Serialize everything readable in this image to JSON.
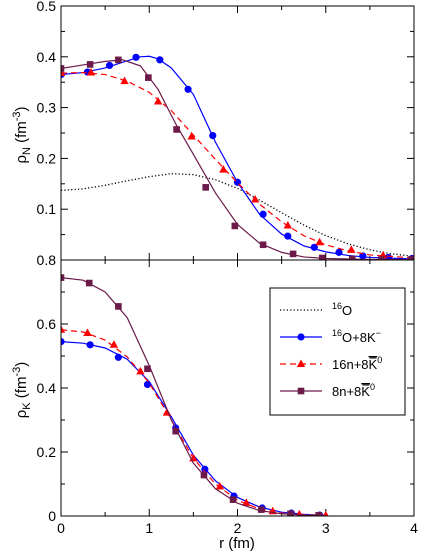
{
  "chart_data": [
    {
      "type": "line",
      "panel": "top",
      "xlabel": "",
      "ylabel": "ρN (fm-3)",
      "ylabel_parts": {
        "main": "ρ",
        "sub": "N",
        "rest": " (fm",
        "sup": "-3",
        "end": ")"
      },
      "xlim": [
        0,
        4
      ],
      "ylim": [
        0.0,
        0.5
      ],
      "xticks": [
        0,
        1,
        2,
        3,
        4
      ],
      "yticks": [
        {
          "value": 0.1,
          "label": "0.1"
        },
        {
          "value": 0.2,
          "label": "0.2"
        },
        {
          "value": 0.3,
          "label": "0.3"
        },
        {
          "value": 0.4,
          "label": "0.4"
        },
        {
          "value": 0.5,
          "label": "0.5"
        }
      ],
      "bottom_label": "0.8",
      "series": [
        {
          "key": "o16",
          "color": "#000000",
          "style": "dotted",
          "marker": "none",
          "curve": [
            [
              0,
              0.137
            ],
            [
              0.25,
              0.14
            ],
            [
              0.5,
              0.147
            ],
            [
              0.75,
              0.156
            ],
            [
              1.0,
              0.164
            ],
            [
              1.25,
              0.17
            ],
            [
              1.5,
              0.168
            ],
            [
              1.75,
              0.158
            ],
            [
              2.0,
              0.141
            ],
            [
              2.25,
              0.118
            ],
            [
              2.5,
              0.093
            ],
            [
              2.75,
              0.069
            ],
            [
              3.0,
              0.048
            ],
            [
              3.25,
              0.032
            ],
            [
              3.5,
              0.02
            ],
            [
              3.75,
              0.012
            ],
            [
              4.0,
              0.007
            ]
          ],
          "points": []
        },
        {
          "key": "o16k",
          "color": "#0000ff",
          "style": "solid",
          "marker": "circle",
          "curve": [
            [
              0,
              0.365
            ],
            [
              0.25,
              0.369
            ],
            [
              0.5,
              0.378
            ],
            [
              0.75,
              0.392
            ],
            [
              0.9,
              0.4
            ],
            [
              1.0,
              0.401
            ],
            [
              1.1,
              0.396
            ],
            [
              1.25,
              0.378
            ],
            [
              1.5,
              0.326
            ],
            [
              1.75,
              0.232
            ],
            [
              2.0,
              0.153
            ],
            [
              2.25,
              0.09
            ],
            [
              2.5,
              0.051
            ],
            [
              2.75,
              0.028
            ],
            [
              3.0,
              0.016
            ],
            [
              3.25,
              0.009
            ],
            [
              3.5,
              0.005
            ],
            [
              4.0,
              0.002
            ]
          ],
          "points": [
            [
              0,
              0.365
            ],
            [
              0.3,
              0.37
            ],
            [
              0.55,
              0.383
            ],
            [
              0.85,
              0.399
            ],
            [
              1.12,
              0.394
            ],
            [
              1.44,
              0.336
            ],
            [
              1.72,
              0.245
            ],
            [
              2.0,
              0.153
            ],
            [
              2.29,
              0.09
            ],
            [
              2.57,
              0.047
            ],
            [
              2.87,
              0.025
            ],
            [
              3.15,
              0.015
            ],
            [
              3.42,
              0.008
            ],
            [
              3.71,
              0.005
            ],
            [
              3.98,
              0.003
            ]
          ]
        },
        {
          "key": "n16k",
          "color": "#ff0000",
          "style": "dashed",
          "marker": "triangle",
          "curve": [
            [
              0,
              0.368
            ],
            [
              0.25,
              0.369
            ],
            [
              0.5,
              0.365
            ],
            [
              0.75,
              0.352
            ],
            [
              1.0,
              0.33
            ],
            [
              1.25,
              0.294
            ],
            [
              1.5,
              0.246
            ],
            [
              1.75,
              0.198
            ],
            [
              2.0,
              0.152
            ],
            [
              2.25,
              0.11
            ],
            [
              2.5,
              0.075
            ],
            [
              2.75,
              0.048
            ],
            [
              3.0,
              0.03
            ],
            [
              3.25,
              0.018
            ],
            [
              3.5,
              0.01
            ],
            [
              4.0,
              0.004
            ]
          ],
          "points": [
            [
              0,
              0.368
            ],
            [
              0.34,
              0.369
            ],
            [
              0.72,
              0.352
            ],
            [
              1.1,
              0.312
            ],
            [
              1.48,
              0.243
            ],
            [
              1.84,
              0.178
            ],
            [
              2.2,
              0.119
            ],
            [
              2.57,
              0.068
            ],
            [
              2.93,
              0.035
            ],
            [
              3.29,
              0.02
            ],
            [
              3.65,
              0.009
            ],
            [
              4.0,
              0.004
            ]
          ]
        },
        {
          "key": "n8k",
          "color": "#6b1a4a",
          "style": "solid",
          "marker": "square",
          "curve": [
            [
              0,
              0.377
            ],
            [
              0.25,
              0.384
            ],
            [
              0.5,
              0.391
            ],
            [
              0.7,
              0.394
            ],
            [
              0.9,
              0.382
            ],
            [
              1.1,
              0.336
            ],
            [
              1.3,
              0.268
            ],
            [
              1.5,
              0.208
            ],
            [
              1.75,
              0.132
            ],
            [
              2.0,
              0.07
            ],
            [
              2.25,
              0.033
            ],
            [
              2.5,
              0.015
            ],
            [
              2.75,
              0.006
            ],
            [
              3.0,
              0.003
            ],
            [
              3.5,
              0.001
            ],
            [
              4.0,
              0.001
            ]
          ],
          "points": [
            [
              0,
              0.377
            ],
            [
              0.33,
              0.385
            ],
            [
              0.65,
              0.394
            ],
            [
              0.99,
              0.359
            ],
            [
              1.31,
              0.257
            ],
            [
              1.64,
              0.143
            ],
            [
              1.97,
              0.067
            ],
            [
              2.29,
              0.03
            ],
            [
              2.63,
              0.012
            ],
            [
              2.96,
              0.004
            ],
            [
              3.3,
              0.002
            ],
            [
              3.63,
              0.001
            ],
            [
              3.97,
              0.001
            ]
          ]
        }
      ]
    },
    {
      "type": "line",
      "panel": "bottom",
      "xlabel": "r (fm)",
      "ylabel": "ρK (fm-3)",
      "ylabel_parts": {
        "main": "ρ",
        "sub": "K",
        "rest": " (fm",
        "sup": "-3",
        "end": ")"
      },
      "xlim": [
        0,
        4
      ],
      "ylim": [
        0.0,
        0.8
      ],
      "xticks": [
        0,
        1,
        2,
        3,
        4
      ],
      "yticks": [
        {
          "value": 0.0,
          "label": "0"
        },
        {
          "value": 0.2,
          "label": "0.2"
        },
        {
          "value": 0.4,
          "label": "0.4"
        },
        {
          "value": 0.6,
          "label": "0.6"
        }
      ],
      "series": [
        {
          "key": "o16k",
          "color": "#0000ff",
          "style": "solid",
          "marker": "circle",
          "curve": [
            [
              0,
              0.545
            ],
            [
              0.25,
              0.54
            ],
            [
              0.5,
              0.525
            ],
            [
              0.75,
              0.49
            ],
            [
              1.0,
              0.42
            ],
            [
              1.25,
              0.31
            ],
            [
              1.5,
              0.19
            ],
            [
              1.75,
              0.11
            ],
            [
              2.0,
              0.058
            ],
            [
              2.25,
              0.028
            ],
            [
              2.5,
              0.012
            ],
            [
              2.75,
              0.005
            ],
            [
              3.0,
              0.002
            ]
          ],
          "points": [
            [
              0,
              0.545
            ],
            [
              0.33,
              0.535
            ],
            [
              0.65,
              0.496
            ],
            [
              0.98,
              0.411
            ],
            [
              1.3,
              0.275
            ],
            [
              1.63,
              0.146
            ],
            [
              1.96,
              0.062
            ],
            [
              2.28,
              0.025
            ],
            [
              2.61,
              0.009
            ],
            [
              2.93,
              0.003
            ]
          ]
        },
        {
          "key": "n16k",
          "color": "#ff0000",
          "style": "dashed",
          "marker": "triangle",
          "curve": [
            [
              0,
              0.582
            ],
            [
              0.25,
              0.575
            ],
            [
              0.5,
              0.55
            ],
            [
              0.75,
              0.497
            ],
            [
              1.0,
              0.416
            ],
            [
              1.25,
              0.3
            ],
            [
              1.5,
              0.18
            ],
            [
              1.75,
              0.1
            ],
            [
              2.0,
              0.049
            ],
            [
              2.25,
              0.022
            ],
            [
              2.5,
              0.009
            ],
            [
              2.75,
              0.004
            ],
            [
              3.0,
              0.002
            ]
          ],
          "points": [
            [
              0,
              0.582
            ],
            [
              0.3,
              0.572
            ],
            [
              0.6,
              0.535
            ],
            [
              0.9,
              0.452
            ],
            [
              1.2,
              0.323
            ],
            [
              1.5,
              0.18
            ],
            [
              1.8,
              0.092
            ],
            [
              2.1,
              0.041
            ],
            [
              2.4,
              0.015
            ],
            [
              2.7,
              0.005
            ],
            [
              3.0,
              0.002
            ]
          ]
        },
        {
          "key": "n8k",
          "color": "#6b1a4a",
          "style": "solid",
          "marker": "square",
          "curve": [
            [
              0,
              0.745
            ],
            [
              0.25,
              0.737
            ],
            [
              0.5,
              0.7
            ],
            [
              0.75,
              0.62
            ],
            [
              1.0,
              0.47
            ],
            [
              1.25,
              0.3
            ],
            [
              1.5,
              0.165
            ],
            [
              1.75,
              0.085
            ],
            [
              2.0,
              0.04
            ],
            [
              2.25,
              0.017
            ],
            [
              2.5,
              0.007
            ],
            [
              2.75,
              0.003
            ],
            [
              3.0,
              0.001
            ]
          ],
          "points": [
            [
              0,
              0.745
            ],
            [
              0.32,
              0.728
            ],
            [
              0.65,
              0.655
            ],
            [
              0.98,
              0.46
            ],
            [
              1.3,
              0.265
            ],
            [
              1.62,
              0.128
            ],
            [
              1.95,
              0.051
            ],
            [
              2.27,
              0.02
            ],
            [
              2.6,
              0.007
            ],
            [
              2.92,
              0.002
            ]
          ]
        }
      ],
      "legend": {
        "placement": "right",
        "entries": [
          {
            "key": "o16",
            "pre": "",
            "sup": "16",
            "main": "O",
            "over": "",
            "supr": ""
          },
          {
            "key": "o16k",
            "pre": "",
            "sup": "16",
            "main": "O+8K",
            "over": "",
            "supr": "−"
          },
          {
            "key": "n16k",
            "pre": "16n+8",
            "sup": "",
            "main": "",
            "over": "K",
            "supr": "0"
          },
          {
            "key": "n8k",
            "pre": "8n+8",
            "sup": "",
            "main": "",
            "over": "K",
            "supr": "0"
          }
        ]
      }
    }
  ]
}
